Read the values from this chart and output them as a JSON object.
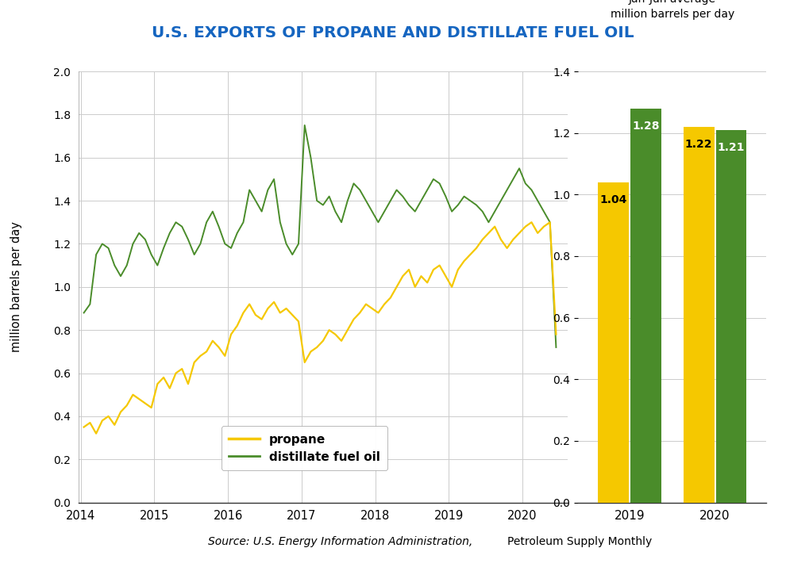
{
  "title": "U.S. EXPORTS OF PROPANE AND DISTILLATE FUEL OIL",
  "title_color": "#1565c0",
  "ylabel_left": "million barrels per day",
  "bar_right_title_line1": "Jan-Jun average",
  "bar_right_title_line2": "million barrels per day",
  "source_italic": "Source: U.S. Energy Information Administration,",
  "source_normal": " Petroleum Supply Monthly",
  "ylim_left": [
    0.0,
    2.0
  ],
  "ylim_right": [
    0.0,
    1.4
  ],
  "yticks_left": [
    0.0,
    0.2,
    0.4,
    0.6,
    0.8,
    1.0,
    1.2,
    1.4,
    1.6,
    1.8,
    2.0
  ],
  "yticks_right": [
    0.0,
    0.2,
    0.4,
    0.6,
    0.8,
    1.0,
    1.2,
    1.4
  ],
  "propane_color": "#f5c800",
  "distillate_color": "#4a8c2a",
  "bar_propane_color": "#f5c800",
  "bar_distillate_color": "#4a8c2a",
  "bar_years": [
    "2019",
    "2020"
  ],
  "bar_propane_vals": [
    1.04,
    1.22
  ],
  "bar_distillate_vals": [
    1.28,
    1.21
  ],
  "legend_propane": "propane",
  "legend_distillate": "distillate fuel oil",
  "propane_data": [
    0.35,
    0.37,
    0.32,
    0.38,
    0.4,
    0.36,
    0.42,
    0.45,
    0.5,
    0.48,
    0.46,
    0.44,
    0.55,
    0.58,
    0.53,
    0.6,
    0.62,
    0.55,
    0.65,
    0.68,
    0.7,
    0.75,
    0.72,
    0.68,
    0.78,
    0.82,
    0.88,
    0.92,
    0.87,
    0.85,
    0.9,
    0.93,
    0.88,
    0.9,
    0.87,
    0.84,
    0.65,
    0.7,
    0.72,
    0.75,
    0.8,
    0.78,
    0.75,
    0.8,
    0.85,
    0.88,
    0.92,
    0.9,
    0.88,
    0.92,
    0.95,
    1.0,
    1.05,
    1.08,
    1.0,
    1.05,
    1.02,
    1.08,
    1.1,
    1.05,
    1.0,
    1.08,
    1.12,
    1.15,
    1.18,
    1.22,
    1.25,
    1.28,
    1.22,
    1.18,
    1.22,
    1.25,
    1.28,
    1.3,
    1.25,
    1.28,
    1.3,
    0.78
  ],
  "distillate_data": [
    0.88,
    0.92,
    1.15,
    1.2,
    1.18,
    1.1,
    1.05,
    1.1,
    1.2,
    1.25,
    1.22,
    1.15,
    1.1,
    1.18,
    1.25,
    1.3,
    1.28,
    1.22,
    1.15,
    1.2,
    1.3,
    1.35,
    1.28,
    1.2,
    1.18,
    1.25,
    1.3,
    1.45,
    1.4,
    1.35,
    1.45,
    1.5,
    1.3,
    1.2,
    1.15,
    1.2,
    1.75,
    1.6,
    1.4,
    1.38,
    1.42,
    1.35,
    1.3,
    1.4,
    1.48,
    1.45,
    1.4,
    1.35,
    1.3,
    1.35,
    1.4,
    1.45,
    1.42,
    1.38,
    1.35,
    1.4,
    1.45,
    1.5,
    1.48,
    1.42,
    1.35,
    1.38,
    1.42,
    1.4,
    1.38,
    1.35,
    1.3,
    1.35,
    1.4,
    1.45,
    1.5,
    1.55,
    1.48,
    1.45,
    1.4,
    1.35,
    1.3,
    0.72
  ]
}
